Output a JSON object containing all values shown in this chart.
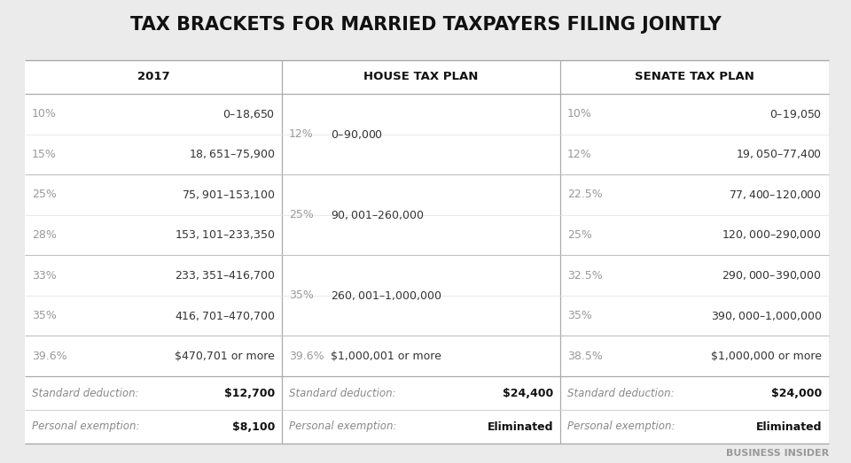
{
  "title": "TAX BRACKETS FOR MARRIED TAXPAYERS FILING JOINTLY",
  "bg_color": "#ebebeb",
  "table_bg": "#ffffff",
  "title_color": "#111111",
  "header_color": "#111111",
  "rate_color": "#999999",
  "range_color": "#333333",
  "footer_label_color": "#888888",
  "footer_val_color": "#111111",
  "line_color_heavy": "#bbbbbb",
  "line_color_light": "#d8d8d8",
  "watermark": "BUSINESS INSIDER",
  "col1_header": "2017",
  "col2_header": "HOUSE TAX PLAN",
  "col3_header": "SENATE TAX PLAN",
  "bracket_rows": [
    {
      "group": 0,
      "col1_rate": "10%",
      "col1_range": "$0 – $18,650",
      "col2_rate": "12%",
      "col2_range": "$0 – $90,000",
      "col3_rate": "10%",
      "col3_range": "$0 – $19,050"
    },
    {
      "group": 0,
      "col1_rate": "15%",
      "col1_range": "$18,651 – $75,900",
      "col2_rate": "",
      "col2_range": "",
      "col3_rate": "12%",
      "col3_range": "$19,050 – $77,400"
    },
    {
      "group": 1,
      "col1_rate": "25%",
      "col1_range": "$75,901 – $153,100",
      "col2_rate": "25%",
      "col2_range": "$90,001 – $260,000",
      "col3_rate": "22.5%",
      "col3_range": "$77,400 – $120,000"
    },
    {
      "group": 1,
      "col1_rate": "28%",
      "col1_range": "$153,101 – $233,350",
      "col2_rate": "",
      "col2_range": "",
      "col3_rate": "25%",
      "col3_range": "$120,000 – $290,000"
    },
    {
      "group": 2,
      "col1_rate": "33%",
      "col1_range": "$233,351 – $416,700",
      "col2_rate": "35%",
      "col2_range": "$260,001 – $1,000,000",
      "col3_rate": "32.5%",
      "col3_range": "$290,000 – $390,000"
    },
    {
      "group": 2,
      "col1_rate": "35%",
      "col1_range": "$416,701 – $470,700",
      "col2_rate": "",
      "col2_range": "",
      "col3_rate": "35%",
      "col3_range": "$390,000 – $1,000,000"
    },
    {
      "group": 3,
      "col1_rate": "39.6%",
      "col1_range": "$470,701 or more",
      "col2_rate": "39.6%",
      "col2_range": "$1,000,001 or more",
      "col3_rate": "38.5%",
      "col3_range": "$1,000,000 or more"
    }
  ],
  "footer_rows": [
    {
      "label": "Standard deduction:",
      "col1_val": "$12,700",
      "col2_val": "$24,400",
      "col3_val": "$24,000"
    },
    {
      "label": "Personal exemption:",
      "col1_val": "$8,100",
      "col2_val": "Eliminated",
      "col3_val": "Eliminated"
    }
  ]
}
